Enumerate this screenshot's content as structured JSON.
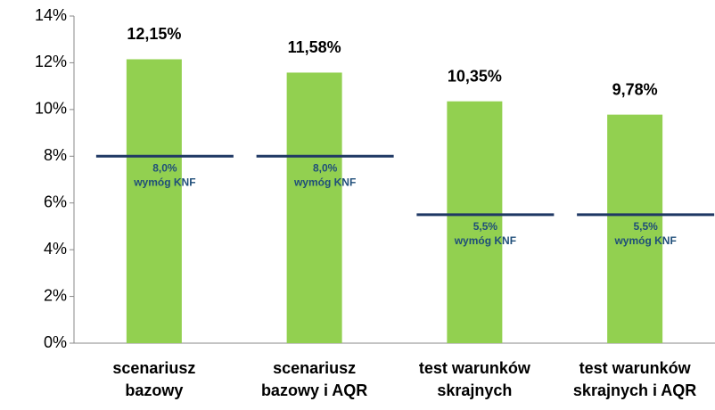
{
  "chart_data": {
    "type": "bar",
    "categories": [
      "scenariusz bazowy",
      "scenariusz bazowy i AQR",
      "test warunków skrajnych",
      "test warunków skrajnych i AQR"
    ],
    "values": [
      12.15,
      11.58,
      10.35,
      9.78
    ],
    "value_labels": [
      "12,15%",
      "11,58%",
      "10,35%",
      "9,78%"
    ],
    "color": "#92d050",
    "thresholds": [
      8.0,
      8.0,
      5.5,
      5.5
    ],
    "threshold_labels": [
      "8,0%",
      "8,0%",
      "5,5%",
      "5,5%"
    ],
    "threshold_name": "wymóg KNF",
    "threshold_color": "#1f3864",
    "ylim": [
      0,
      14
    ],
    "yticks": [
      {
        "value": 0,
        "label": "0%"
      },
      {
        "value": 2,
        "label": "2%"
      },
      {
        "value": 4,
        "label": "4%"
      },
      {
        "value": 6,
        "label": "6%"
      },
      {
        "value": 8,
        "label": "8%"
      },
      {
        "value": 10,
        "label": "10%"
      },
      {
        "value": 12,
        "label": "12%"
      },
      {
        "value": 14,
        "label": "14%"
      }
    ],
    "grid": false
  }
}
